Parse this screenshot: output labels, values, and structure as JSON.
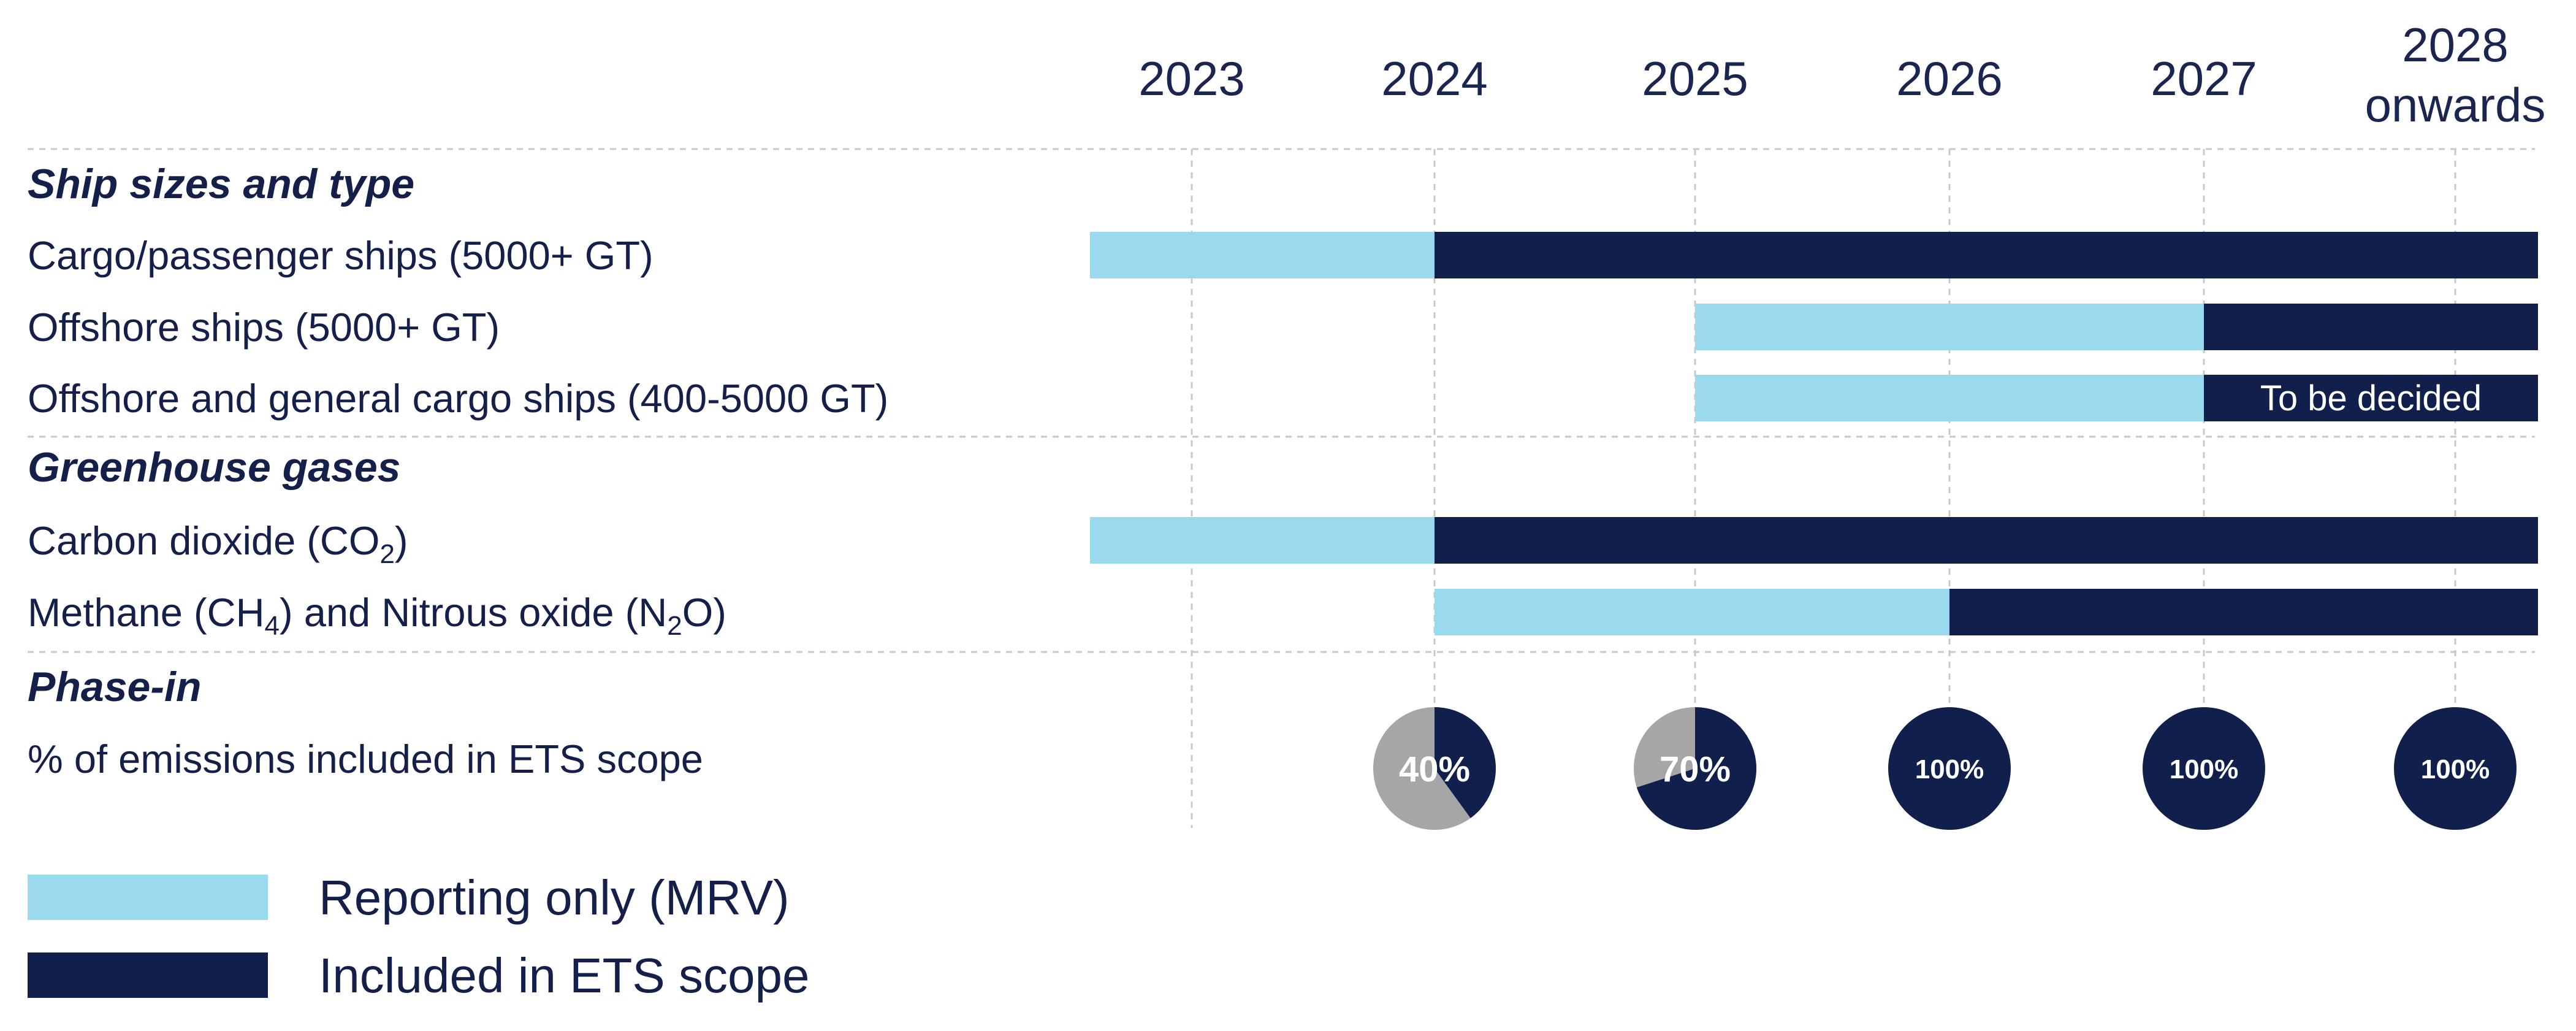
{
  "chart_data": {
    "type": "timeline",
    "title": "",
    "years": [
      "2023",
      "2024",
      "2025",
      "2026",
      "2027"
    ],
    "last_year": {
      "line1": "2028",
      "line2": "onwards"
    },
    "sections": [
      {
        "name": "Ship sizes and type"
      },
      {
        "name": "Greenhouse gases"
      },
      {
        "name": "Phase-in"
      }
    ],
    "rows": [
      {
        "label": "Cargo/passenger ships (5000+ GT)",
        "segments": [
          {
            "status": "reporting",
            "start": 2023,
            "end": 2024
          },
          {
            "status": "ets",
            "start": 2024,
            "end": 2029
          }
        ]
      },
      {
        "label": "Offshore ships (5000+ GT)",
        "segments": [
          {
            "status": "reporting",
            "start": 2025,
            "end": 2027
          },
          {
            "status": "ets",
            "start": 2027,
            "end": 2029
          }
        ]
      },
      {
        "label": "Offshore and general cargo ships (400-5000 GT)",
        "segments": [
          {
            "status": "reporting",
            "start": 2025,
            "end": 2027
          },
          {
            "status": "ets",
            "start": 2027,
            "end": 2029,
            "text": "To be decided"
          }
        ]
      },
      {
        "label_parts": [
          "Carbon dioxide (CO",
          "2",
          ")"
        ],
        "segments": [
          {
            "status": "reporting",
            "start": 2023,
            "end": 2024
          },
          {
            "status": "ets",
            "start": 2024,
            "end": 2029
          }
        ]
      },
      {
        "label_parts": [
          "Methane (CH",
          "4",
          ") and Nitrous oxide (N",
          "2",
          "O)"
        ],
        "segments": [
          {
            "status": "reporting",
            "start": 2024,
            "end": 2026
          },
          {
            "status": "ets",
            "start": 2026,
            "end": 2029
          }
        ]
      }
    ],
    "phase_in_label": "% of emissions included in ETS scope",
    "phase_in": [
      {
        "year": 2024,
        "percent": 40,
        "label": "40%"
      },
      {
        "year": 2025,
        "percent": 70,
        "label": "70%"
      },
      {
        "year": 2026,
        "percent": 100,
        "label": "100%"
      },
      {
        "year": 2027,
        "percent": 100,
        "label": "100%"
      },
      {
        "year": 2028,
        "percent": 100,
        "label": "100%"
      }
    ],
    "legend": [
      {
        "key": "reporting",
        "label": "Reporting only (MRV)"
      },
      {
        "key": "ets",
        "label": "Included in ETS scope"
      }
    ],
    "colors": {
      "reporting": "#9bd9ef",
      "ets": "#101f4c",
      "remaining": "#a6a6a6",
      "text": "#14204a",
      "grid": "#c8c8c8"
    }
  }
}
